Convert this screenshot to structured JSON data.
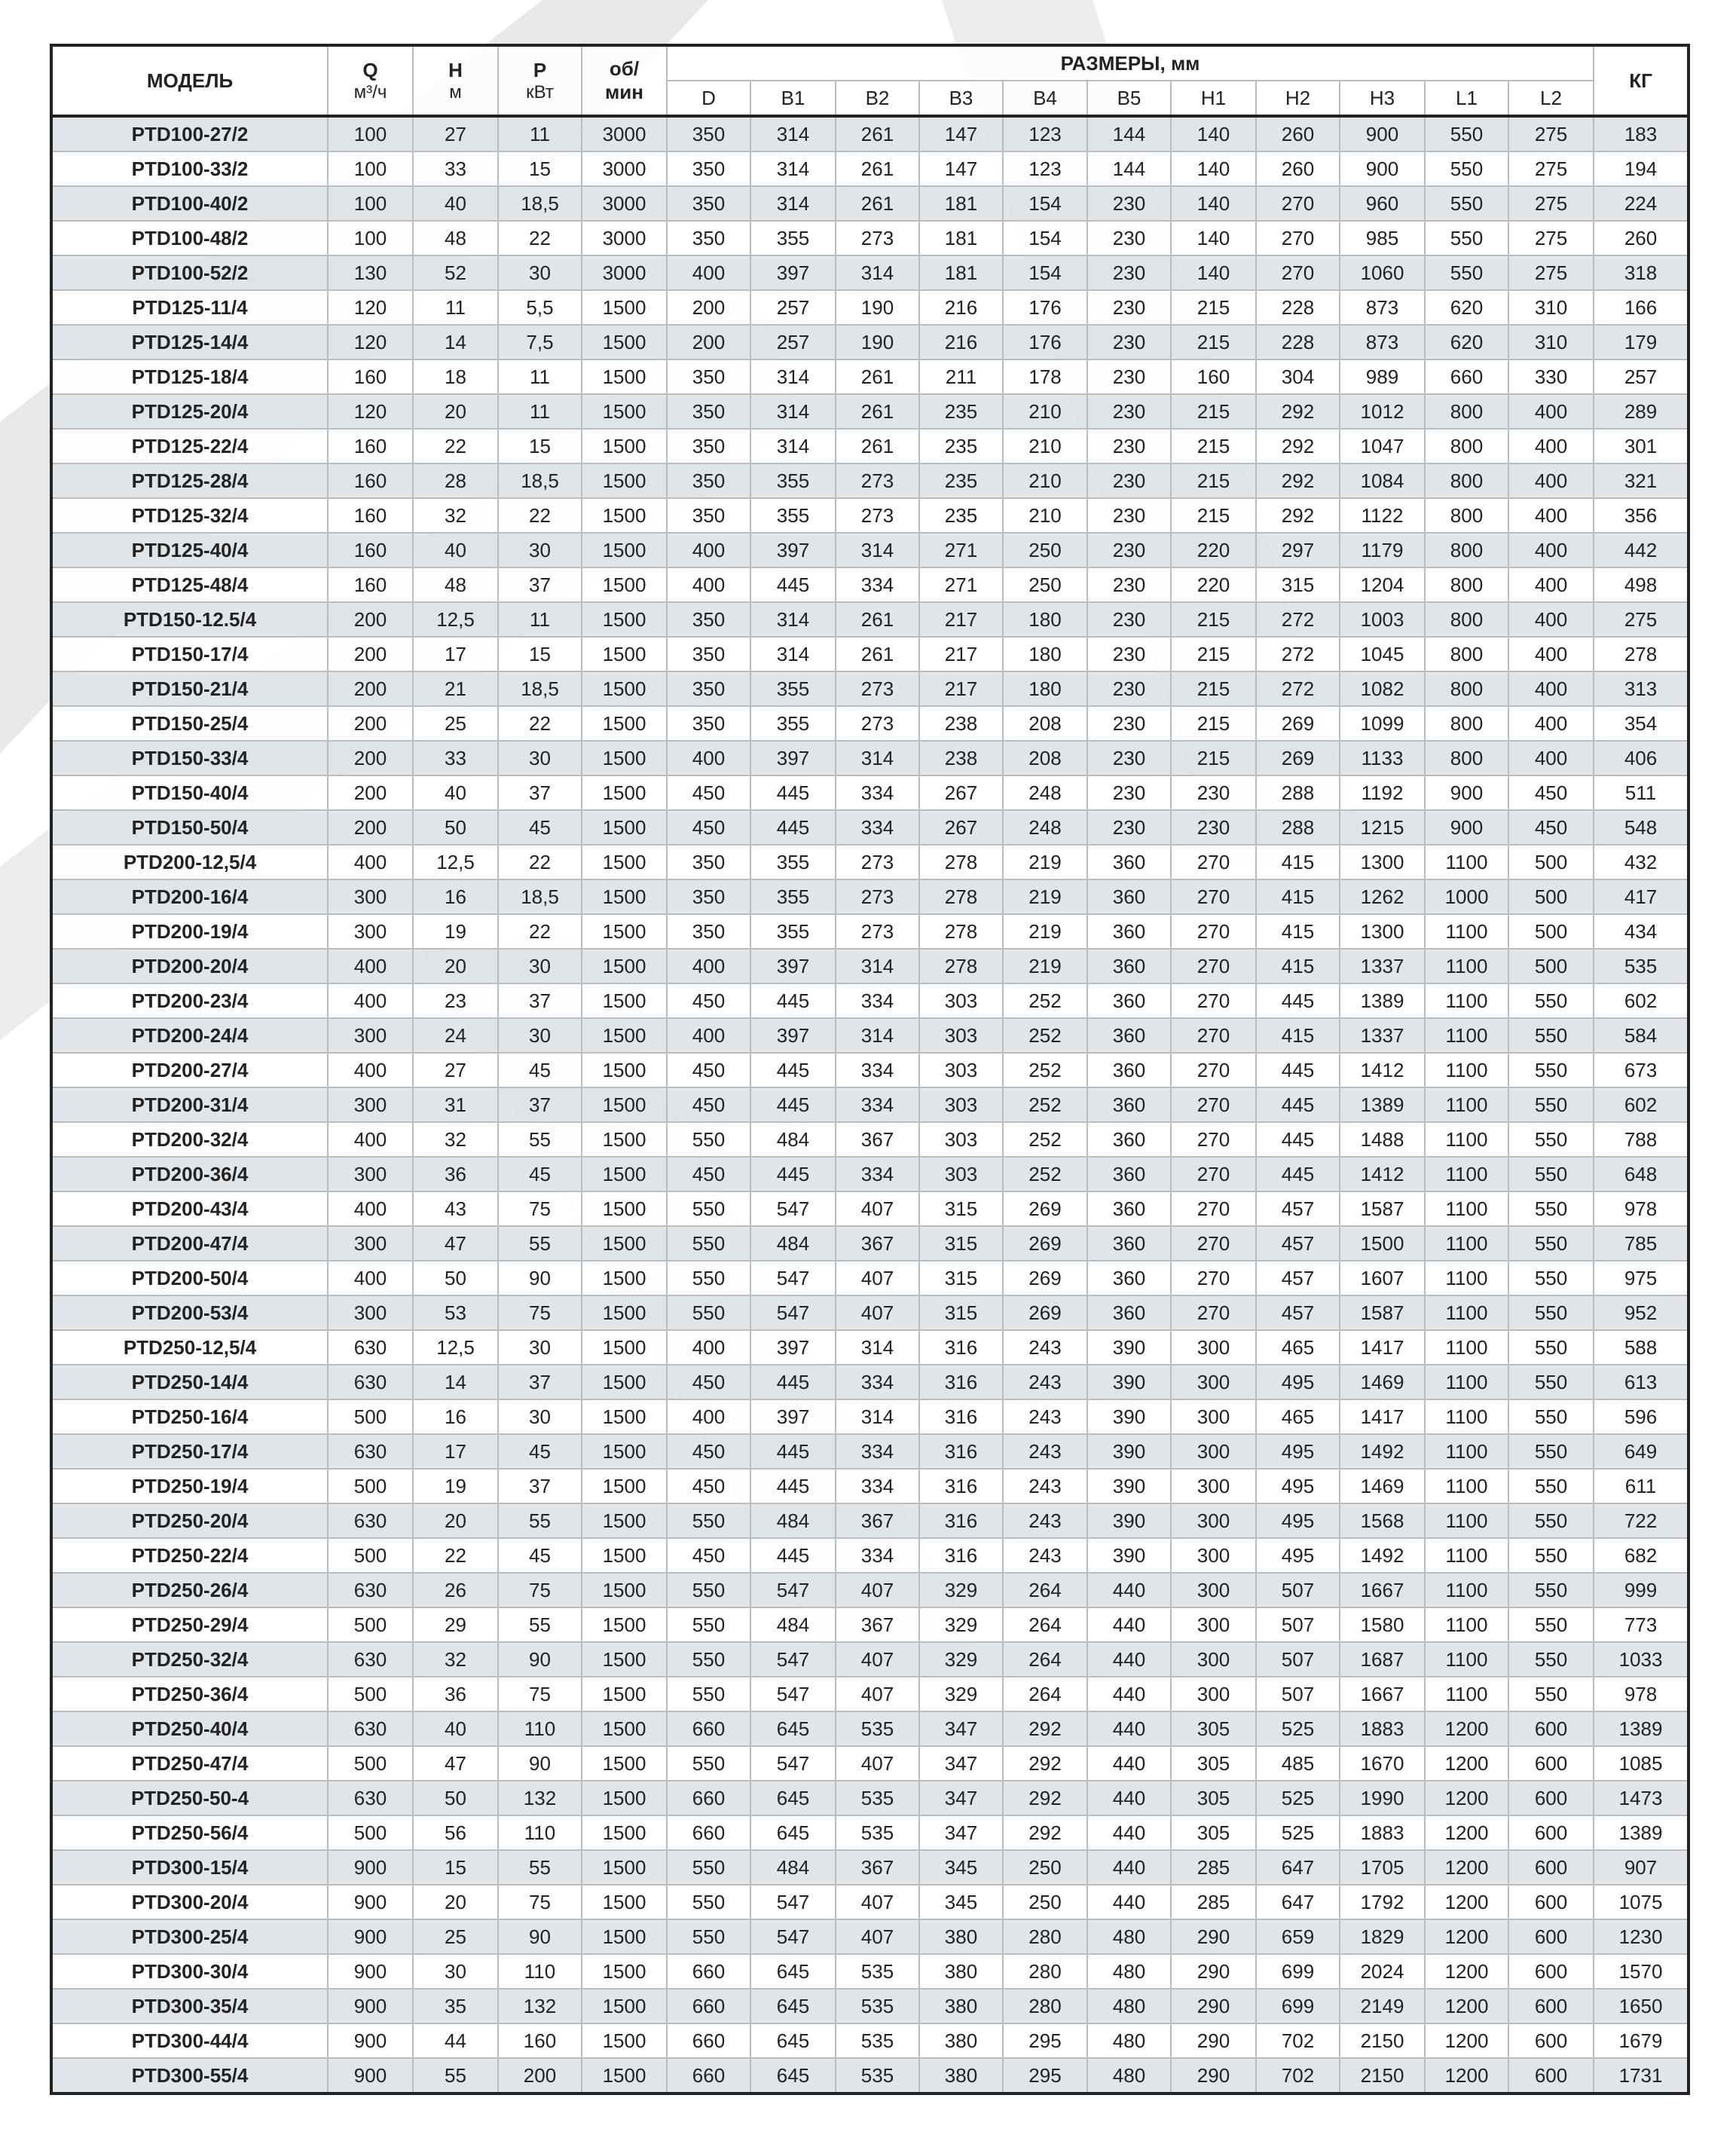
{
  "header": {
    "model": "МОДЕЛЬ",
    "q": "Q",
    "q_unit": "м³/ч",
    "h": "H",
    "h_unit": "м",
    "p": "P",
    "p_unit": "кВт",
    "rpm_top": "об/",
    "rpm_bottom": "мин",
    "dims": "РАЗМЕРЫ, мм",
    "kg": "КГ",
    "dim_cols": [
      "D",
      "B1",
      "B2",
      "B3",
      "B4",
      "B5",
      "H1",
      "H2",
      "H3",
      "L1",
      "L2"
    ]
  },
  "colors": {
    "row_shade": "#dde3e8",
    "border": "#222222",
    "watermark": "#e6e6e6"
  },
  "rows": [
    [
      "PTD100-27/2",
      "100",
      "27",
      "11",
      "3000",
      "350",
      "314",
      "261",
      "147",
      "123",
      "144",
      "140",
      "260",
      "900",
      "550",
      "275",
      "183"
    ],
    [
      "PTD100-33/2",
      "100",
      "33",
      "15",
      "3000",
      "350",
      "314",
      "261",
      "147",
      "123",
      "144",
      "140",
      "260",
      "900",
      "550",
      "275",
      "194"
    ],
    [
      "PTD100-40/2",
      "100",
      "40",
      "18,5",
      "3000",
      "350",
      "314",
      "261",
      "181",
      "154",
      "230",
      "140",
      "270",
      "960",
      "550",
      "275",
      "224"
    ],
    [
      "PTD100-48/2",
      "100",
      "48",
      "22",
      "3000",
      "350",
      "355",
      "273",
      "181",
      "154",
      "230",
      "140",
      "270",
      "985",
      "550",
      "275",
      "260"
    ],
    [
      "PTD100-52/2",
      "130",
      "52",
      "30",
      "3000",
      "400",
      "397",
      "314",
      "181",
      "154",
      "230",
      "140",
      "270",
      "1060",
      "550",
      "275",
      "318"
    ],
    [
      "PTD125-11/4",
      "120",
      "11",
      "5,5",
      "1500",
      "200",
      "257",
      "190",
      "216",
      "176",
      "230",
      "215",
      "228",
      "873",
      "620",
      "310",
      "166"
    ],
    [
      "PTD125-14/4",
      "120",
      "14",
      "7,5",
      "1500",
      "200",
      "257",
      "190",
      "216",
      "176",
      "230",
      "215",
      "228",
      "873",
      "620",
      "310",
      "179"
    ],
    [
      "PTD125-18/4",
      "160",
      "18",
      "11",
      "1500",
      "350",
      "314",
      "261",
      "211",
      "178",
      "230",
      "160",
      "304",
      "989",
      "660",
      "330",
      "257"
    ],
    [
      "PTD125-20/4",
      "120",
      "20",
      "11",
      "1500",
      "350",
      "314",
      "261",
      "235",
      "210",
      "230",
      "215",
      "292",
      "1012",
      "800",
      "400",
      "289"
    ],
    [
      "PTD125-22/4",
      "160",
      "22",
      "15",
      "1500",
      "350",
      "314",
      "261",
      "235",
      "210",
      "230",
      "215",
      "292",
      "1047",
      "800",
      "400",
      "301"
    ],
    [
      "PTD125-28/4",
      "160",
      "28",
      "18,5",
      "1500",
      "350",
      "355",
      "273",
      "235",
      "210",
      "230",
      "215",
      "292",
      "1084",
      "800",
      "400",
      "321"
    ],
    [
      "PTD125-32/4",
      "160",
      "32",
      "22",
      "1500",
      "350",
      "355",
      "273",
      "235",
      "210",
      "230",
      "215",
      "292",
      "1122",
      "800",
      "400",
      "356"
    ],
    [
      "PTD125-40/4",
      "160",
      "40",
      "30",
      "1500",
      "400",
      "397",
      "314",
      "271",
      "250",
      "230",
      "220",
      "297",
      "1179",
      "800",
      "400",
      "442"
    ],
    [
      "PTD125-48/4",
      "160",
      "48",
      "37",
      "1500",
      "400",
      "445",
      "334",
      "271",
      "250",
      "230",
      "220",
      "315",
      "1204",
      "800",
      "400",
      "498"
    ],
    [
      "PTD150-12.5/4",
      "200",
      "12,5",
      "11",
      "1500",
      "350",
      "314",
      "261",
      "217",
      "180",
      "230",
      "215",
      "272",
      "1003",
      "800",
      "400",
      "275"
    ],
    [
      "PTD150-17/4",
      "200",
      "17",
      "15",
      "1500",
      "350",
      "314",
      "261",
      "217",
      "180",
      "230",
      "215",
      "272",
      "1045",
      "800",
      "400",
      "278"
    ],
    [
      "PTD150-21/4",
      "200",
      "21",
      "18,5",
      "1500",
      "350",
      "355",
      "273",
      "217",
      "180",
      "230",
      "215",
      "272",
      "1082",
      "800",
      "400",
      "313"
    ],
    [
      "PTD150-25/4",
      "200",
      "25",
      "22",
      "1500",
      "350",
      "355",
      "273",
      "238",
      "208",
      "230",
      "215",
      "269",
      "1099",
      "800",
      "400",
      "354"
    ],
    [
      "PTD150-33/4",
      "200",
      "33",
      "30",
      "1500",
      "400",
      "397",
      "314",
      "238",
      "208",
      "230",
      "215",
      "269",
      "1133",
      "800",
      "400",
      "406"
    ],
    [
      "PTD150-40/4",
      "200",
      "40",
      "37",
      "1500",
      "450",
      "445",
      "334",
      "267",
      "248",
      "230",
      "230",
      "288",
      "1192",
      "900",
      "450",
      "511"
    ],
    [
      "PTD150-50/4",
      "200",
      "50",
      "45",
      "1500",
      "450",
      "445",
      "334",
      "267",
      "248",
      "230",
      "230",
      "288",
      "1215",
      "900",
      "450",
      "548"
    ],
    [
      "PTD200-12,5/4",
      "400",
      "12,5",
      "22",
      "1500",
      "350",
      "355",
      "273",
      "278",
      "219",
      "360",
      "270",
      "415",
      "1300",
      "1100",
      "500",
      "432"
    ],
    [
      "PTD200-16/4",
      "300",
      "16",
      "18,5",
      "1500",
      "350",
      "355",
      "273",
      "278",
      "219",
      "360",
      "270",
      "415",
      "1262",
      "1000",
      "500",
      "417"
    ],
    [
      "PTD200-19/4",
      "300",
      "19",
      "22",
      "1500",
      "350",
      "355",
      "273",
      "278",
      "219",
      "360",
      "270",
      "415",
      "1300",
      "1100",
      "500",
      "434"
    ],
    [
      "PTD200-20/4",
      "400",
      "20",
      "30",
      "1500",
      "400",
      "397",
      "314",
      "278",
      "219",
      "360",
      "270",
      "415",
      "1337",
      "1100",
      "500",
      "535"
    ],
    [
      "PTD200-23/4",
      "400",
      "23",
      "37",
      "1500",
      "450",
      "445",
      "334",
      "303",
      "252",
      "360",
      "270",
      "445",
      "1389",
      "1100",
      "550",
      "602"
    ],
    [
      "PTD200-24/4",
      "300",
      "24",
      "30",
      "1500",
      "400",
      "397",
      "314",
      "303",
      "252",
      "360",
      "270",
      "415",
      "1337",
      "1100",
      "550",
      "584"
    ],
    [
      "PTD200-27/4",
      "400",
      "27",
      "45",
      "1500",
      "450",
      "445",
      "334",
      "303",
      "252",
      "360",
      "270",
      "445",
      "1412",
      "1100",
      "550",
      "673"
    ],
    [
      "PTD200-31/4",
      "300",
      "31",
      "37",
      "1500",
      "450",
      "445",
      "334",
      "303",
      "252",
      "360",
      "270",
      "445",
      "1389",
      "1100",
      "550",
      "602"
    ],
    [
      "PTD200-32/4",
      "400",
      "32",
      "55",
      "1500",
      "550",
      "484",
      "367",
      "303",
      "252",
      "360",
      "270",
      "445",
      "1488",
      "1100",
      "550",
      "788"
    ],
    [
      "PTD200-36/4",
      "300",
      "36",
      "45",
      "1500",
      "450",
      "445",
      "334",
      "303",
      "252",
      "360",
      "270",
      "445",
      "1412",
      "1100",
      "550",
      "648"
    ],
    [
      "PTD200-43/4",
      "400",
      "43",
      "75",
      "1500",
      "550",
      "547",
      "407",
      "315",
      "269",
      "360",
      "270",
      "457",
      "1587",
      "1100",
      "550",
      "978"
    ],
    [
      "PTD200-47/4",
      "300",
      "47",
      "55",
      "1500",
      "550",
      "484",
      "367",
      "315",
      "269",
      "360",
      "270",
      "457",
      "1500",
      "1100",
      "550",
      "785"
    ],
    [
      "PTD200-50/4",
      "400",
      "50",
      "90",
      "1500",
      "550",
      "547",
      "407",
      "315",
      "269",
      "360",
      "270",
      "457",
      "1607",
      "1100",
      "550",
      "975"
    ],
    [
      "PTD200-53/4",
      "300",
      "53",
      "75",
      "1500",
      "550",
      "547",
      "407",
      "315",
      "269",
      "360",
      "270",
      "457",
      "1587",
      "1100",
      "550",
      "952"
    ],
    [
      "PTD250-12,5/4",
      "630",
      "12,5",
      "30",
      "1500",
      "400",
      "397",
      "314",
      "316",
      "243",
      "390",
      "300",
      "465",
      "1417",
      "1100",
      "550",
      "588"
    ],
    [
      "PTD250-14/4",
      "630",
      "14",
      "37",
      "1500",
      "450",
      "445",
      "334",
      "316",
      "243",
      "390",
      "300",
      "495",
      "1469",
      "1100",
      "550",
      "613"
    ],
    [
      "PTD250-16/4",
      "500",
      "16",
      "30",
      "1500",
      "400",
      "397",
      "314",
      "316",
      "243",
      "390",
      "300",
      "465",
      "1417",
      "1100",
      "550",
      "596"
    ],
    [
      "PTD250-17/4",
      "630",
      "17",
      "45",
      "1500",
      "450",
      "445",
      "334",
      "316",
      "243",
      "390",
      "300",
      "495",
      "1492",
      "1100",
      "550",
      "649"
    ],
    [
      "PTD250-19/4",
      "500",
      "19",
      "37",
      "1500",
      "450",
      "445",
      "334",
      "316",
      "243",
      "390",
      "300",
      "495",
      "1469",
      "1100",
      "550",
      "611"
    ],
    [
      "PTD250-20/4",
      "630",
      "20",
      "55",
      "1500",
      "550",
      "484",
      "367",
      "316",
      "243",
      "390",
      "300",
      "495",
      "1568",
      "1100",
      "550",
      "722"
    ],
    [
      "PTD250-22/4",
      "500",
      "22",
      "45",
      "1500",
      "450",
      "445",
      "334",
      "316",
      "243",
      "390",
      "300",
      "495",
      "1492",
      "1100",
      "550",
      "682"
    ],
    [
      "PTD250-26/4",
      "630",
      "26",
      "75",
      "1500",
      "550",
      "547",
      "407",
      "329",
      "264",
      "440",
      "300",
      "507",
      "1667",
      "1100",
      "550",
      "999"
    ],
    [
      "PTD250-29/4",
      "500",
      "29",
      "55",
      "1500",
      "550",
      "484",
      "367",
      "329",
      "264",
      "440",
      "300",
      "507",
      "1580",
      "1100",
      "550",
      "773"
    ],
    [
      "PTD250-32/4",
      "630",
      "32",
      "90",
      "1500",
      "550",
      "547",
      "407",
      "329",
      "264",
      "440",
      "300",
      "507",
      "1687",
      "1100",
      "550",
      "1033"
    ],
    [
      "PTD250-36/4",
      "500",
      "36",
      "75",
      "1500",
      "550",
      "547",
      "407",
      "329",
      "264",
      "440",
      "300",
      "507",
      "1667",
      "1100",
      "550",
      "978"
    ],
    [
      "PTD250-40/4",
      "630",
      "40",
      "110",
      "1500",
      "660",
      "645",
      "535",
      "347",
      "292",
      "440",
      "305",
      "525",
      "1883",
      "1200",
      "600",
      "1389"
    ],
    [
      "PTD250-47/4",
      "500",
      "47",
      "90",
      "1500",
      "550",
      "547",
      "407",
      "347",
      "292",
      "440",
      "305",
      "485",
      "1670",
      "1200",
      "600",
      "1085"
    ],
    [
      "PTD250-50-4",
      "630",
      "50",
      "132",
      "1500",
      "660",
      "645",
      "535",
      "347",
      "292",
      "440",
      "305",
      "525",
      "1990",
      "1200",
      "600",
      "1473"
    ],
    [
      "PTD250-56/4",
      "500",
      "56",
      "110",
      "1500",
      "660",
      "645",
      "535",
      "347",
      "292",
      "440",
      "305",
      "525",
      "1883",
      "1200",
      "600",
      "1389"
    ],
    [
      "PTD300-15/4",
      "900",
      "15",
      "55",
      "1500",
      "550",
      "484",
      "367",
      "345",
      "250",
      "440",
      "285",
      "647",
      "1705",
      "1200",
      "600",
      "907"
    ],
    [
      "PTD300-20/4",
      "900",
      "20",
      "75",
      "1500",
      "550",
      "547",
      "407",
      "345",
      "250",
      "440",
      "285",
      "647",
      "1792",
      "1200",
      "600",
      "1075"
    ],
    [
      "PTD300-25/4",
      "900",
      "25",
      "90",
      "1500",
      "550",
      "547",
      "407",
      "380",
      "280",
      "480",
      "290",
      "659",
      "1829",
      "1200",
      "600",
      "1230"
    ],
    [
      "PTD300-30/4",
      "900",
      "30",
      "110",
      "1500",
      "660",
      "645",
      "535",
      "380",
      "280",
      "480",
      "290",
      "699",
      "2024",
      "1200",
      "600",
      "1570"
    ],
    [
      "PTD300-35/4",
      "900",
      "35",
      "132",
      "1500",
      "660",
      "645",
      "535",
      "380",
      "280",
      "480",
      "290",
      "699",
      "2149",
      "1200",
      "600",
      "1650"
    ],
    [
      "PTD300-44/4",
      "900",
      "44",
      "160",
      "1500",
      "660",
      "645",
      "535",
      "380",
      "295",
      "480",
      "290",
      "702",
      "2150",
      "1200",
      "600",
      "1679"
    ],
    [
      "PTD300-55/4",
      "900",
      "55",
      "200",
      "1500",
      "660",
      "645",
      "535",
      "380",
      "295",
      "480",
      "290",
      "702",
      "2150",
      "1200",
      "600",
      "1731"
    ]
  ]
}
